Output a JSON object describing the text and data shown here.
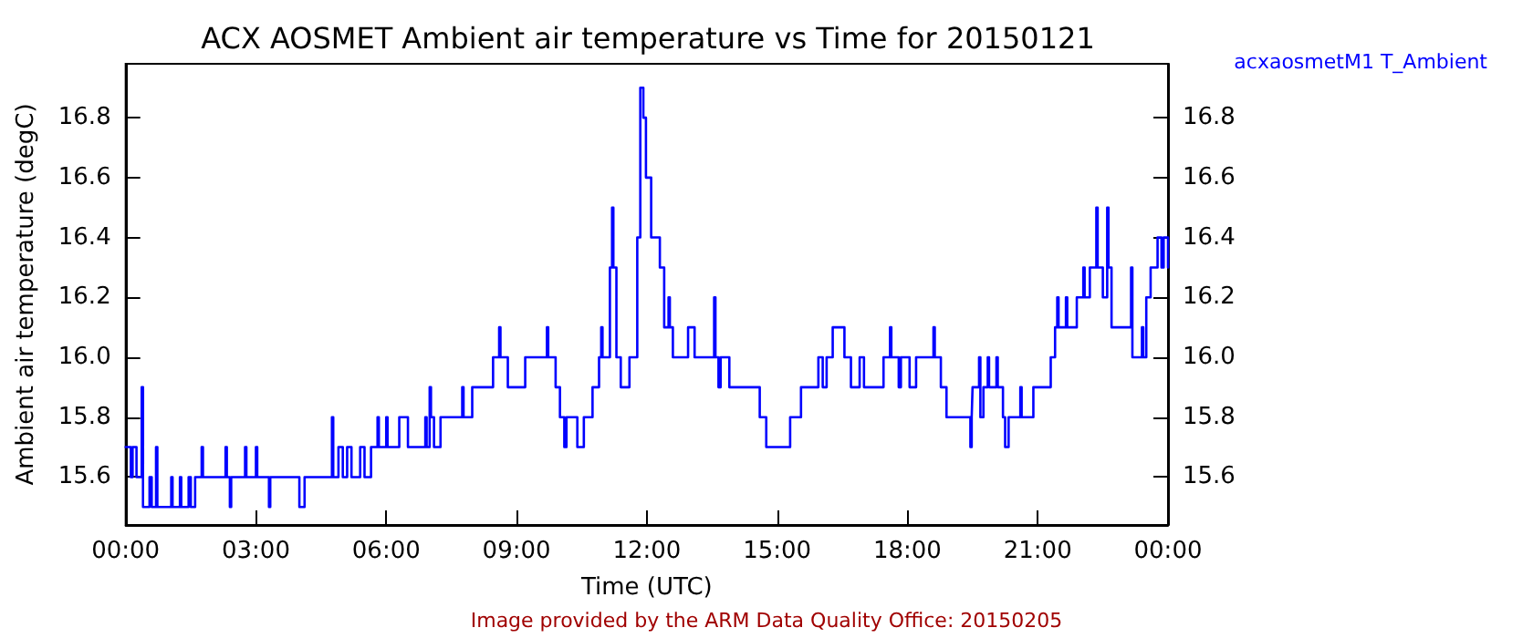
{
  "chart_data": {
    "type": "step",
    "title": "ACX AOSMET Ambient air temperature vs Time for 20150121",
    "xlabel": "Time (UTC)",
    "ylabel": "Ambient air temperature (degC)",
    "annotations": [
      "Image provided by the ARM Data Quality Office: 20150205"
    ],
    "legend": "top right",
    "grid": false,
    "marker": "none",
    "line_style": "solid",
    "xlim": [
      0,
      24
    ],
    "xticks": [
      {
        "value": 0,
        "label": "00:00"
      },
      {
        "value": 3,
        "label": "03:00"
      },
      {
        "value": 6,
        "label": "06:00"
      },
      {
        "value": 9,
        "label": "09:00"
      },
      {
        "value": 12,
        "label": "12:00"
      },
      {
        "value": 15,
        "label": "15:00"
      },
      {
        "value": 18,
        "label": "18:00"
      },
      {
        "value": 21,
        "label": "21:00"
      },
      {
        "value": 24,
        "label": "00:00"
      }
    ],
    "ylim": [
      15.44,
      16.98
    ],
    "yticks": [
      {
        "value": 15.6,
        "label": "15.6"
      },
      {
        "value": 15.8,
        "label": "15.8"
      },
      {
        "value": 16,
        "label": "16.0"
      },
      {
        "value": 16.2,
        "label": "16.2"
      },
      {
        "value": 16.4,
        "label": "16.4"
      },
      {
        "value": 16.6,
        "label": "16.6"
      },
      {
        "value": 16.8,
        "label": "16.8"
      }
    ],
    "y2lim": [
      15.44,
      16.98
    ],
    "y2ticks": [
      {
        "value": 15.6,
        "label": "15.6"
      },
      {
        "value": 15.8,
        "label": "15.8"
      },
      {
        "value": 16,
        "label": "16.0"
      },
      {
        "value": 16.2,
        "label": "16.2"
      },
      {
        "value": 16.4,
        "label": "16.4"
      },
      {
        "value": 16.6,
        "label": "16.6"
      },
      {
        "value": 16.8,
        "label": "16.8"
      }
    ],
    "series": [
      {
        "name": "acxaosmetM1 T_Ambient",
        "color": "#0000ff",
        "x": [
          0,
          0.12,
          0.16,
          0.25,
          0.37,
          0.4,
          0.55,
          0.6,
          0.7,
          0.73,
          1.05,
          1.08,
          1.25,
          1.28,
          1.45,
          1.5,
          1.6,
          1.75,
          1.78,
          2.3,
          2.33,
          2.4,
          2.43,
          2.75,
          2.78,
          3.0,
          3.03,
          3.3,
          3.33,
          4.0,
          4.12,
          4.75,
          4.78,
          4.9,
          5.0,
          5.1,
          5.2,
          5.4,
          5.5,
          5.65,
          5.8,
          5.83,
          6.0,
          6.03,
          6.3,
          6.5,
          6.9,
          6.93,
          7.0,
          7.03,
          7.1,
          7.25,
          7.75,
          7.78,
          7.98,
          8.46,
          8.6,
          8.63,
          8.8,
          9.2,
          9.7,
          9.73,
          9.9,
          10.0,
          10.1,
          10.15,
          10.4,
          10.55,
          10.75,
          10.9,
          10.95,
          10.98,
          11.15,
          11.2,
          11.23,
          11.3,
          11.4,
          11.6,
          11.78,
          11.85,
          11.92,
          11.98,
          12.1,
          12.3,
          12.4,
          12.5,
          12.53,
          12.6,
          12.95,
          13.1,
          13.55,
          13.58,
          13.65,
          13.7,
          13.9,
          14.6,
          14.75,
          15.3,
          15.55,
          15.95,
          16.05,
          16.14,
          16.28,
          16.55,
          16.7,
          16.9,
          17.0,
          17.45,
          17.6,
          17.63,
          17.8,
          17.85,
          18.05,
          18.2,
          18.6,
          18.63,
          18.77,
          18.9,
          19.45,
          19.48,
          19.5,
          19.65,
          19.68,
          19.75,
          19.85,
          19.88,
          20.05,
          20.08,
          20.2,
          20.25,
          20.33,
          20.6,
          20.63,
          20.9,
          21.3,
          21.4,
          21.45,
          21.48,
          21.65,
          21.68,
          21.9,
          22.05,
          22.08,
          22.2,
          22.35,
          22.38,
          22.5,
          22.6,
          22.63,
          22.7,
          23.15,
          23.18,
          23.4,
          23.43,
          23.5,
          23.6,
          23.76,
          23.85,
          23.9,
          24
        ],
        "values": [
          15.7,
          15.6,
          15.7,
          15.6,
          15.9,
          15.5,
          15.6,
          15.5,
          15.7,
          15.5,
          15.6,
          15.5,
          15.6,
          15.5,
          15.6,
          15.5,
          15.6,
          15.7,
          15.6,
          15.7,
          15.6,
          15.5,
          15.6,
          15.7,
          15.6,
          15.7,
          15.6,
          15.5,
          15.6,
          15.5,
          15.6,
          15.8,
          15.6,
          15.7,
          15.6,
          15.7,
          15.6,
          15.7,
          15.6,
          15.7,
          15.8,
          15.7,
          15.8,
          15.7,
          15.8,
          15.7,
          15.8,
          15.7,
          15.9,
          15.8,
          15.7,
          15.8,
          15.9,
          15.8,
          15.9,
          16.0,
          16.1,
          16.0,
          15.9,
          16.0,
          16.1,
          16.0,
          15.9,
          15.8,
          15.7,
          15.8,
          15.7,
          15.8,
          15.9,
          16.0,
          16.1,
          16.0,
          16.3,
          16.5,
          16.3,
          16.0,
          15.9,
          16.0,
          16.4,
          16.9,
          16.8,
          16.6,
          16.4,
          16.3,
          16.1,
          16.2,
          16.1,
          16.0,
          16.1,
          16.0,
          16.2,
          16.0,
          15.9,
          16.0,
          15.9,
          15.8,
          15.7,
          15.8,
          15.9,
          16.0,
          15.9,
          16.0,
          16.1,
          16.0,
          15.9,
          16.0,
          15.9,
          16.0,
          16.1,
          16.0,
          15.9,
          16.0,
          15.9,
          16.0,
          16.1,
          16.0,
          15.9,
          15.8,
          15.7,
          15.8,
          15.9,
          16.0,
          15.8,
          15.9,
          16.0,
          15.9,
          16.0,
          15.9,
          15.8,
          15.7,
          15.8,
          15.9,
          15.8,
          15.9,
          16.0,
          16.1,
          16.2,
          16.1,
          16.2,
          16.1,
          16.2,
          16.3,
          16.2,
          16.3,
          16.5,
          16.3,
          16.2,
          16.5,
          16.3,
          16.1,
          16.3,
          16.0,
          16.1,
          16.0,
          16.2,
          16.3,
          16.4,
          16.3,
          16.4,
          16.3
        ]
      }
    ]
  }
}
